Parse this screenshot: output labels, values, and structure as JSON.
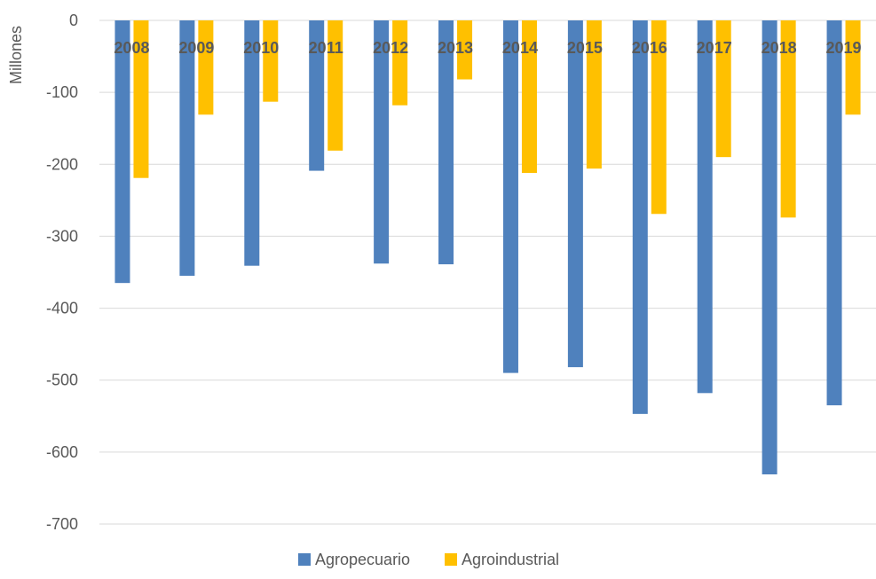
{
  "chart_data": {
    "type": "bar",
    "categories": [
      "2008",
      "2009",
      "2010",
      "2011",
      "2012",
      "2013",
      "2014",
      "2015",
      "2016",
      "2017",
      "2018",
      "2019"
    ],
    "series": [
      {
        "name": "Agropecuario",
        "color": "#4f81bd",
        "values": [
          -365,
          -355,
          -341,
          -209,
          -338,
          -339,
          -490,
          -482,
          -547,
          -518,
          -631,
          -535
        ]
      },
      {
        "name": "Agroindustrial",
        "color": "#ffc000",
        "values": [
          -219,
          -131,
          -113,
          -181,
          -118,
          -82,
          -212,
          -206,
          -269,
          -190,
          -274,
          -131
        ]
      }
    ],
    "title": "",
    "xlabel": "",
    "ylabel": "Millones",
    "ylim": [
      -700,
      0
    ],
    "yticks": [
      0,
      -100,
      -200,
      -300,
      -400,
      -500,
      -600,
      -700
    ],
    "ytick_labels": [
      "0",
      "-100",
      "-200",
      "-300",
      "-400",
      "-500",
      "-600",
      "-700"
    ],
    "grid": true,
    "legend": "bottom-center",
    "category_labels_position": "top (at zero line)"
  }
}
